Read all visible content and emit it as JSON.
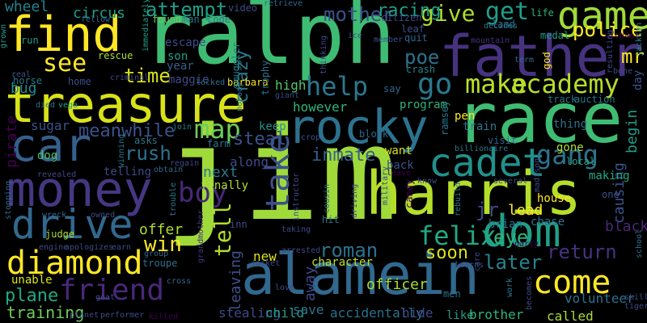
{
  "background_color": "#000000",
  "words": [
    {
      "text": "jim",
      "color": "#9fda3a"
    },
    {
      "text": "ralph",
      "color": "#3fbc73"
    },
    {
      "text": "race",
      "color": "#3fbc73"
    },
    {
      "text": "treasure",
      "color": "#d8e219"
    },
    {
      "text": "alamein",
      "color": "#31688e"
    },
    {
      "text": "harris",
      "color": "#b5de2b"
    },
    {
      "text": "father",
      "color": "#46327e"
    },
    {
      "text": "find",
      "color": "#fde725"
    },
    {
      "text": "car",
      "color": "#355f8d"
    },
    {
      "text": "money",
      "color": "#453781"
    },
    {
      "text": "rocky",
      "color": "#2c728e"
    },
    {
      "text": "dom",
      "color": "#1fa187"
    },
    {
      "text": "cadet",
      "color": "#21918c"
    },
    {
      "text": "drive",
      "color": "#31688e"
    },
    {
      "text": "friend",
      "color": "#482878"
    },
    {
      "text": "come",
      "color": "#fde725"
    },
    {
      "text": "diamond",
      "color": "#fde725"
    },
    {
      "text": "game",
      "color": "#a0da39"
    },
    {
      "text": "felix",
      "color": "#22a884"
    },
    {
      "text": "boy",
      "color": "#482878"
    },
    {
      "text": "map",
      "color": "#6ccd5a"
    },
    {
      "text": "take",
      "color": "#3b528b"
    },
    {
      "text": "make",
      "color": "#bddf26"
    },
    {
      "text": "academy",
      "color": "#b5de2b"
    },
    {
      "text": "go",
      "color": "#2a788e"
    },
    {
      "text": "gang",
      "color": "#2c728e"
    },
    {
      "text": "help",
      "color": "#2a788e"
    },
    {
      "text": "see",
      "color": "#fde725"
    },
    {
      "text": "give",
      "color": "#addc30"
    },
    {
      "text": "get",
      "color": "#1f9e89"
    },
    {
      "text": "mother",
      "color": "#3b528b"
    },
    {
      "text": "attempt",
      "color": "#1f9e89"
    },
    {
      "text": "police",
      "color": "#fde725"
    },
    {
      "text": "eye",
      "color": "#2fb47c"
    },
    {
      "text": "tell",
      "color": "#b5de2b"
    },
    {
      "text": "roman",
      "color": "#2c728e"
    },
    {
      "text": "win",
      "color": "#fde725"
    },
    {
      "text": "return",
      "color": "#46327e"
    },
    {
      "text": "jr",
      "color": "#3e4a89"
    },
    {
      "text": "later",
      "color": "#26828e"
    },
    {
      "text": "time",
      "color": "#d8e219"
    },
    {
      "text": "poe",
      "color": "#2c728e"
    },
    {
      "text": "mr",
      "color": "#fde725"
    },
    {
      "text": "rush",
      "color": "#2c728e"
    },
    {
      "text": "crazy",
      "color": "#2a788e"
    },
    {
      "text": "steal",
      "color": "#3b528b"
    },
    {
      "text": "inmate",
      "color": "#355f8d"
    },
    {
      "text": "soon",
      "color": "#d8e219"
    },
    {
      "text": "meanwhile",
      "color": "#3b528b"
    },
    {
      "text": "plane",
      "color": "#22a884"
    },
    {
      "text": "training",
      "color": "#6ccd5a"
    },
    {
      "text": "pirate",
      "color": "#440154"
    },
    {
      "text": "wheel",
      "color": "#25838e"
    },
    {
      "text": "circus",
      "color": "#1f9e89"
    },
    {
      "text": "racing",
      "color": "#1fa187"
    },
    {
      "text": "bug",
      "color": "#238a8d"
    },
    {
      "text": "give",
      "color": "#addc30"
    },
    {
      "text": "begin",
      "color": "#1f9e89"
    },
    {
      "text": "causing",
      "color": "#3b528b"
    },
    {
      "text": "leaving",
      "color": "#3b528b"
    },
    {
      "text": "away",
      "color": "#3e4a89"
    },
    {
      "text": "offer",
      "color": "#addc30"
    },
    {
      "text": "lead",
      "color": "#fde725"
    },
    {
      "text": "black",
      "color": "#482878"
    },
    {
      "text": "stealing",
      "color": "#3e4a89"
    },
    {
      "text": "child",
      "color": "#1f9e89"
    },
    {
      "text": "save",
      "color": "#2c728e"
    },
    {
      "text": "accidentally",
      "color": "#2c728e"
    },
    {
      "text": "hide",
      "color": "#3e4a89"
    },
    {
      "text": "like",
      "color": "#1f9e89"
    },
    {
      "text": "brother",
      "color": "#2fb47c"
    },
    {
      "text": "called",
      "color": "#addc30"
    },
    {
      "text": "volunteer",
      "color": "#2c728e"
    },
    {
      "text": "officer",
      "color": "#addc30"
    },
    {
      "text": "character",
      "color": "#bddf26"
    },
    {
      "text": "new",
      "color": "#d8e219"
    },
    {
      "text": "unable",
      "color": "#d8e219"
    },
    {
      "text": "sugar",
      "color": "#3b528b"
    },
    {
      "text": "however",
      "color": "#2fb47c"
    },
    {
      "text": "program",
      "color": "#2fb47c"
    },
    {
      "text": "keep",
      "color": "#21918c"
    },
    {
      "text": "high",
      "color": "#52c569"
    },
    {
      "text": "next",
      "color": "#2a788e"
    },
    {
      "text": "along",
      "color": "#3e4a89"
    },
    {
      "text": "barbara",
      "color": "#fde725"
    },
    {
      "text": "maggie",
      "color": "#3e4a89"
    },
    {
      "text": "year",
      "color": "#355f8d"
    },
    {
      "text": "son",
      "color": "#1fa187"
    },
    {
      "text": "home",
      "color": "#3e4a89"
    },
    {
      "text": "rescue",
      "color": "#addc30"
    },
    {
      "text": "escape",
      "color": "#3e4a89"
    },
    {
      "text": "found",
      "color": "#6ccd5a"
    },
    {
      "text": "man",
      "color": "#2a788e"
    },
    {
      "text": "code",
      "color": "#2a788e"
    },
    {
      "text": "video",
      "color": "#3e4a89"
    },
    {
      "text": "trophy",
      "color": "#2c728e"
    },
    {
      "text": "smuggler",
      "color": "#25838e"
    },
    {
      "text": "want",
      "color": "#d8e219"
    },
    {
      "text": "train",
      "color": "#2a788e"
    },
    {
      "text": "pen",
      "color": "#fde725"
    },
    {
      "text": "visit",
      "color": "#31688e"
    },
    {
      "text": "thing",
      "color": "#2c728e"
    },
    {
      "text": "gone",
      "color": "#addc30"
    },
    {
      "text": "house",
      "color": "#fde725"
    },
    {
      "text": "chase",
      "color": "#2c728e"
    },
    {
      "text": "brian",
      "color": "#2a788e"
    },
    {
      "text": "making",
      "color": "#22a884"
    },
    {
      "text": "local",
      "color": "#22a884"
    },
    {
      "text": "one",
      "color": "#3b528b"
    },
    {
      "text": "back",
      "color": "#3b528b"
    },
    {
      "text": "telling",
      "color": "#3e4a89"
    },
    {
      "text": "asks",
      "color": "#2a788e"
    },
    {
      "text": "finally",
      "color": "#b5de2b"
    },
    {
      "text": "farm",
      "color": "#2a788e"
    },
    {
      "text": "dog",
      "color": "#52c569"
    },
    {
      "text": "crash",
      "color": "#25838e"
    },
    {
      "text": "leaf",
      "color": "#3b528b"
    },
    {
      "text": "quit",
      "color": "#31688e"
    },
    {
      "text": "land",
      "color": "#31688e"
    },
    {
      "text": "life",
      "color": "#2fb47c"
    },
    {
      "text": "citizen",
      "color": "#3e4a89"
    },
    {
      "text": "member",
      "color": "#3b528b"
    },
    {
      "text": "decides",
      "color": "#2a788e"
    },
    {
      "text": "medal",
      "color": "#1f9e89"
    },
    {
      "text": "god",
      "color": "#fde725"
    },
    {
      "text": "day",
      "color": "#3b528b"
    },
    {
      "text": "track",
      "color": "#2c728e"
    },
    {
      "text": "auction",
      "color": "#2a788e"
    },
    {
      "text": "michael",
      "color": "#440154"
    },
    {
      "text": "jackson",
      "color": "#25838e"
    },
    {
      "text": "bone",
      "color": "#3e4a89"
    },
    {
      "text": "resulting",
      "color": "#3e4a89"
    },
    {
      "text": "term",
      "color": "#31688e"
    },
    {
      "text": "mountain",
      "color": "#46327e"
    },
    {
      "text": "say",
      "color": "#31688e"
    },
    {
      "text": "madison",
      "color": "#3e4a89"
    },
    {
      "text": "billionaire",
      "color": "#2a788e"
    },
    {
      "text": "ramsey",
      "color": "#2a788e"
    },
    {
      "text": "block",
      "color": "#31688e"
    },
    {
      "text": "crop",
      "color": "#3b528b"
    },
    {
      "text": "join",
      "color": "#25838e"
    },
    {
      "text": "locked",
      "color": "#2c728e"
    },
    {
      "text": "criminal",
      "color": "#3e4a89"
    },
    {
      "text": "horse",
      "color": "#2a788e"
    },
    {
      "text": "real",
      "color": "#3b528b"
    },
    {
      "text": "run",
      "color": "#1f9e89"
    },
    {
      "text": "grown",
      "color": "#1f9e89"
    },
    {
      "text": "fellow",
      "color": "#31688e"
    },
    {
      "text": "immediately",
      "color": "#1f9e89"
    },
    {
      "text": "retrieve",
      "color": "#31688e"
    },
    {
      "text": "ice",
      "color": "#3e4a89"
    },
    {
      "text": "thinking",
      "color": "#3e4a89"
    },
    {
      "text": "giant",
      "color": "#3e4a89"
    },
    {
      "text": "nobody",
      "color": "#2a788e"
    },
    {
      "text": "died",
      "color": "#2c728e"
    },
    {
      "text": "vega",
      "color": "#1fa187"
    },
    {
      "text": "winning",
      "color": "#2a788e"
    },
    {
      "text": "regain",
      "color": "#3e4a89"
    },
    {
      "text": "obtain",
      "color": "#31688e"
    },
    {
      "text": "trouble",
      "color": "#2a788e"
    },
    {
      "text": "revealed",
      "color": "#3e4a89"
    },
    {
      "text": "instructor",
      "color": "#3e4a89"
    },
    {
      "text": "military",
      "color": "#3e4a89"
    },
    {
      "text": "driving",
      "color": "#3e4a89"
    },
    {
      "text": "cousin",
      "color": "#2c728e"
    },
    {
      "text": "taking",
      "color": "#3e4a89"
    },
    {
      "text": "candy",
      "color": "#440154"
    },
    {
      "text": "rebuild",
      "color": "#2a788e"
    },
    {
      "text": "know",
      "color": "#3e4a89"
    },
    {
      "text": "leave",
      "color": "#440154"
    },
    {
      "text": "several",
      "color": "#3e4a89"
    },
    {
      "text": "school",
      "color": "#2c728e"
    },
    {
      "text": "party",
      "color": "#440154"
    },
    {
      "text": "stopping",
      "color": "#31688e"
    },
    {
      "text": "wreck",
      "color": "#31688e"
    },
    {
      "text": "owned",
      "color": "#3e4a89"
    },
    {
      "text": "judge",
      "color": "#addc30"
    },
    {
      "text": "engine",
      "color": "#3e4a89"
    },
    {
      "text": "apologizes",
      "color": "#3e4a89"
    },
    {
      "text": "earn",
      "color": "#3e4a89"
    },
    {
      "text": "group",
      "color": "#31688e"
    },
    {
      "text": "grandmother",
      "color": "#46327e"
    },
    {
      "text": "arrested",
      "color": "#3e4a89"
    },
    {
      "text": "jacket",
      "color": "#3e4a89"
    },
    {
      "text": "love",
      "color": "#3e4a89"
    },
    {
      "text": "learns",
      "color": "#3e4a89"
    },
    {
      "text": "care",
      "color": "#3e4a89"
    },
    {
      "text": "men",
      "color": "#2c728e"
    },
    {
      "text": "work",
      "color": "#2a788e"
    },
    {
      "text": "becomes",
      "color": "#3e4a89"
    },
    {
      "text": "skill",
      "color": "#3e4a89"
    },
    {
      "text": "tiger",
      "color": "#3e4a89"
    },
    {
      "text": "hit",
      "color": "#2c728e"
    },
    {
      "text": "inn",
      "color": "#3e4a89"
    },
    {
      "text": "troupe",
      "color": "#2c728e"
    },
    {
      "text": "cross",
      "color": "#31688e"
    },
    {
      "text": "goat",
      "color": "#3e4a89"
    },
    {
      "text": "planet",
      "color": "#3e4a89"
    },
    {
      "text": "performer",
      "color": "#3e4a89"
    },
    {
      "text": "killed",
      "color": "#440154"
    }
  ]
}
